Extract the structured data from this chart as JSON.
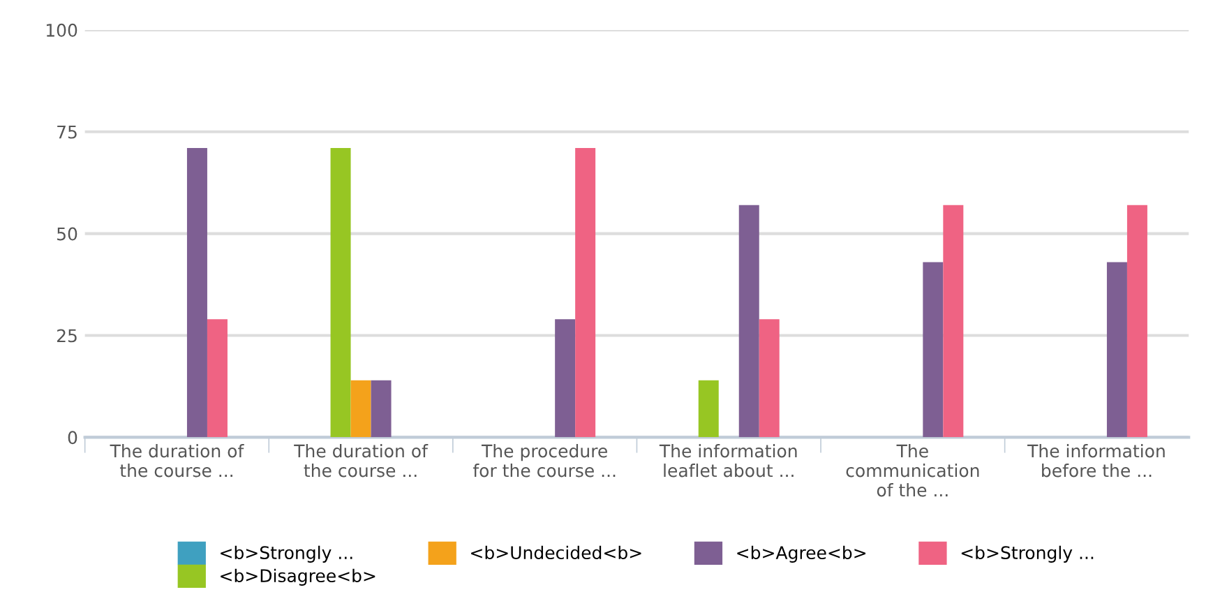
{
  "chart_data": {
    "type": "bar",
    "categories": [
      "The duration of\nthe course ...",
      "The duration of\nthe course ...",
      "The procedure\nfor the course ...",
      "The information\nleaflet about ...",
      "The\ncommunication\nof the ...",
      "The information\nbefore the ..."
    ],
    "series": [
      {
        "name": "<b>Strongly ...",
        "color": "#3fa0c0",
        "values": [
          0,
          0,
          0,
          0,
          0,
          0
        ]
      },
      {
        "name": "<b>Disagree<b>",
        "color": "#97c623",
        "values": [
          0,
          71,
          0,
          14,
          0,
          0
        ]
      },
      {
        "name": "<b>Undecided<b>",
        "color": "#f4a21b",
        "values": [
          0,
          14,
          0,
          0,
          0,
          0
        ]
      },
      {
        "name": "<b>Agree<b>",
        "color": "#7e5f93",
        "values": [
          71,
          14,
          29,
          57,
          43,
          43
        ]
      },
      {
        "name": "<b>Strongly ...",
        "color": "#ef6383",
        "values": [
          29,
          0,
          71,
          29,
          57,
          57
        ]
      }
    ],
    "ylim": [
      0,
      100
    ],
    "yticks": [
      0,
      25,
      50,
      75,
      100
    ],
    "grid": "y",
    "legend": "bottom"
  }
}
